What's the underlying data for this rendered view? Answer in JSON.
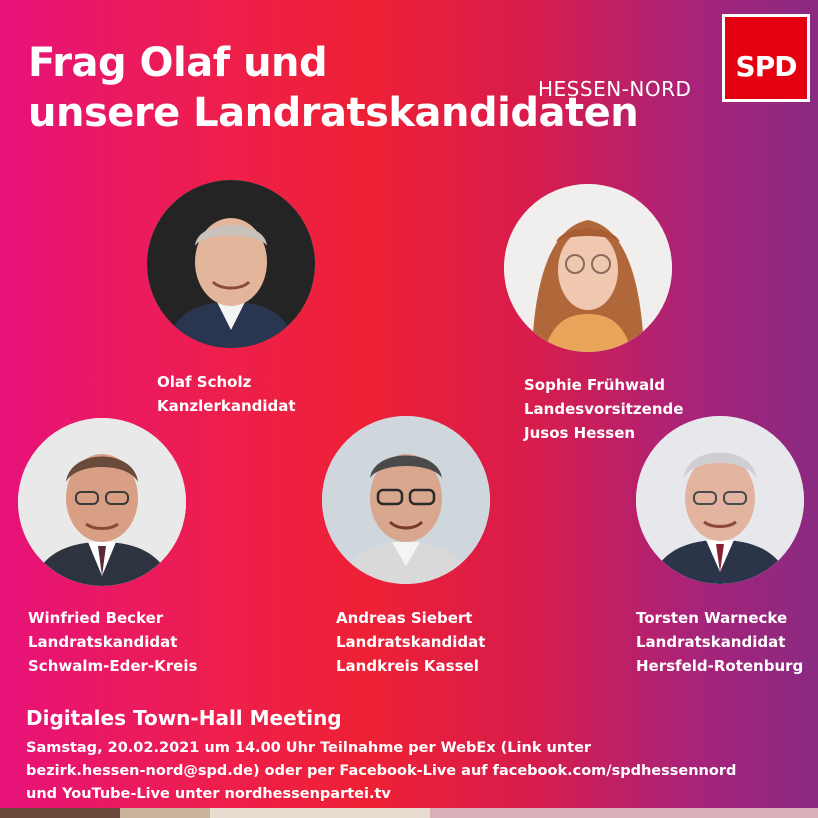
{
  "title": {
    "line1": "Frag Olaf und",
    "line2": "unsere Landratskandidaten"
  },
  "brand": {
    "region": "HESSEN-NORD",
    "logo_text": "SPD",
    "logo_color": "#e3000f"
  },
  "people": [
    {
      "name": "Olaf Scholz",
      "role": "Kanzlerkandidat",
      "extra": "",
      "portrait": "man-portrait-photo"
    },
    {
      "name": "Sophie Frühwald",
      "role": "Landesvorsitzende",
      "extra": "Jusos Hessen",
      "portrait": "woman-portrait-photo"
    },
    {
      "name": "Winfried Becker",
      "role": "Landratskandidat",
      "extra": "Schwalm-Eder-Kreis",
      "portrait": "man-portrait-photo"
    },
    {
      "name": "Andreas Siebert",
      "role": "Landratskandidat",
      "extra": "Landkreis Kassel",
      "portrait": "man-portrait-photo"
    },
    {
      "name": "Torsten Warnecke",
      "role": "Landratskandidat",
      "extra": "Hersfeld-Rotenburg",
      "portrait": "man-portrait-photo"
    }
  ],
  "event": {
    "title": "Digitales Town-Hall Meeting",
    "line1": "Samstag, 20.02.2021 um 14.00 Uhr Teilnahme per WebEx (Link unter",
    "line2": "bezirk.hessen-nord@spd.de) oder per Facebook-Live auf facebook.com/spdhessennord",
    "line3": "und YouTube-Live unter nordhessenpartei.tv"
  },
  "colors": {
    "gradient_left": "#e6127a",
    "gradient_mid": "#ee2035",
    "gradient_right": "#8a2a82",
    "text": "#ffffff"
  }
}
